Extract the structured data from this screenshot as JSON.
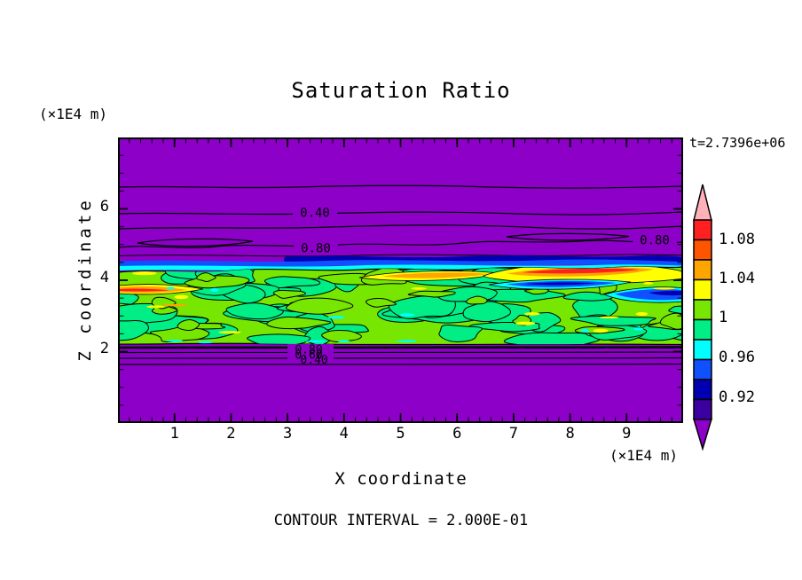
{
  "chart_data": {
    "type": "filled_contour",
    "title": "Saturation Ratio",
    "time_label": "t=2.7396e+06",
    "footer_label": "CONTOUR INTERVAL = 2.000E-01",
    "contour_interval": 0.2,
    "xlabel": "X coordinate",
    "x_unit": "(×1E4 m)",
    "ylabel": "Z coordinate",
    "y_unit": "(×1E4 m)",
    "xlim": [
      0,
      10
    ],
    "ylim": [
      0,
      8
    ],
    "x_ticks": [
      "1",
      "2",
      "3",
      "4",
      "5",
      "6",
      "7",
      "8",
      "9"
    ],
    "y_ticks": [
      "6",
      "4",
      "2"
    ],
    "colorbar": {
      "tick_labels": [
        "1.08",
        "1.04",
        "1",
        "0.96",
        "0.92"
      ],
      "levels": [
        0.9,
        0.92,
        0.94,
        0.96,
        0.98,
        1.0,
        1.02,
        1.04,
        1.06,
        1.08,
        1.1
      ],
      "segment_colors": [
        "#ff2020",
        "#ff5500",
        "#ffa500",
        "#ffff00",
        "#77e600",
        "#00ee85",
        "#00ffff",
        "#0f50ff",
        "#0000b2",
        "#3c00a0"
      ],
      "over_arrow_color": "#ffb0b8",
      "under_arrow_color": "#8c00c8"
    },
    "background_color": "#8c00c8",
    "contour_labels": {
      "upper_040": "0.40",
      "upper_080_left": "0.80",
      "upper_080_right": "0.80",
      "lower_080": "0.80",
      "lower_060": "0.60",
      "lower_040": "0.40"
    },
    "field_summary": {
      "background_region": "purple background = saturation ratio below 0.90 (out of colorbar range)",
      "upper_contour_lines_values": [
        0.2,
        0.4,
        0.6,
        0.8
      ],
      "lower_contour_lines_values": [
        0.8,
        0.6,
        0.4
      ],
      "mixed_band": "turbulent near-saturated band (~0.92-1.10) between z≈2 and z≈4.5 (×1E4 m), mostly 1.00-1.04 greens with yellow/orange/red streaks up to >1.08 near z≈4 and cyan/blue/navy pockets down to <0.92 along its top edge"
    }
  }
}
